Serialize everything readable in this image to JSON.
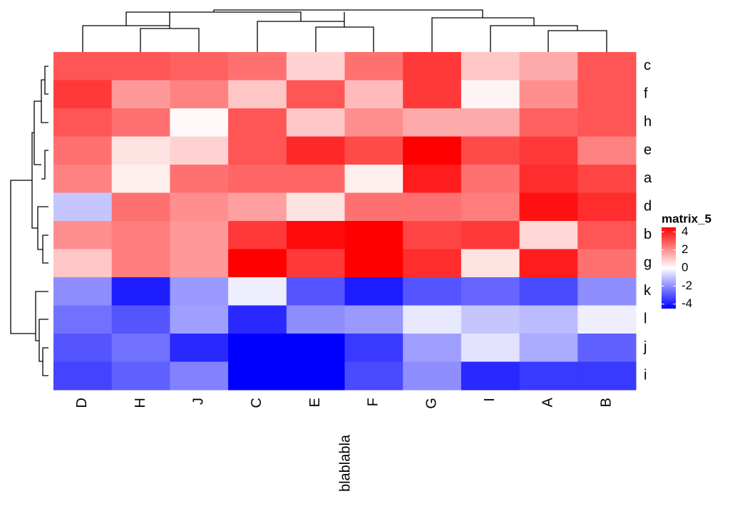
{
  "chart_data": {
    "type": "heatmap",
    "x_label": "blablabla",
    "columns": [
      "D",
      "H",
      "J",
      "C",
      "E",
      "F",
      "G",
      "I",
      "A",
      "B"
    ],
    "rows": [
      "c",
      "f",
      "h",
      "e",
      "a",
      "d",
      "b",
      "g",
      "k",
      "l",
      "j",
      "i"
    ],
    "values": [
      [
        3,
        3,
        2.8,
        2.5,
        0.8,
        2.5,
        3.5,
        1,
        1.5,
        3
      ],
      [
        3.5,
        1.8,
        2.2,
        1,
        3,
        1.2,
        3.5,
        0.2,
        2,
        3
      ],
      [
        3,
        2.5,
        0.1,
        3,
        1,
        2,
        1.5,
        1.5,
        2.8,
        3
      ],
      [
        2.5,
        0.5,
        0.8,
        3,
        3.8,
        3.2,
        5,
        3.2,
        3.5,
        2.2
      ],
      [
        2.2,
        0.3,
        2.5,
        2.7,
        2.7,
        0.3,
        4,
        2.5,
        3.7,
        3.3
      ],
      [
        -1,
        2.5,
        2,
        1.7,
        0.5,
        2.5,
        2.5,
        2.3,
        4.2,
        3.7
      ],
      [
        2,
        2.3,
        1.8,
        3.5,
        4.3,
        5,
        3.3,
        3.5,
        0.7,
        3
      ],
      [
        1,
        2.3,
        1.8,
        4.5,
        3.5,
        4.7,
        3.7,
        0.5,
        4,
        2.5
      ],
      [
        -2,
        -4,
        -1.8,
        -0.3,
        -3,
        -4,
        -3,
        -2.7,
        -3.2,
        -2
      ],
      [
        -2.5,
        -3,
        -1.7,
        -3.8,
        -2,
        -1.8,
        -0.4,
        -1,
        -1.2,
        -0.3
      ],
      [
        -3,
        -2.5,
        -3.8,
        -5,
        -5,
        -3.5,
        -1.7,
        -0.5,
        -1.5,
        -2.8
      ],
      [
        -3.3,
        -2.8,
        -2.2,
        -4.7,
        -4.5,
        -3.2,
        -2,
        -3.8,
        -3.5,
        -3.5
      ]
    ],
    "colors": {
      "low": "#0000ff",
      "mid": "#ffffff",
      "high": "#ff0000"
    },
    "legend_title": "matrix_5",
    "clim": [
      -4.5,
      4.5
    ],
    "legend_ticks": [
      -4,
      -2,
      0,
      2,
      4
    ]
  }
}
